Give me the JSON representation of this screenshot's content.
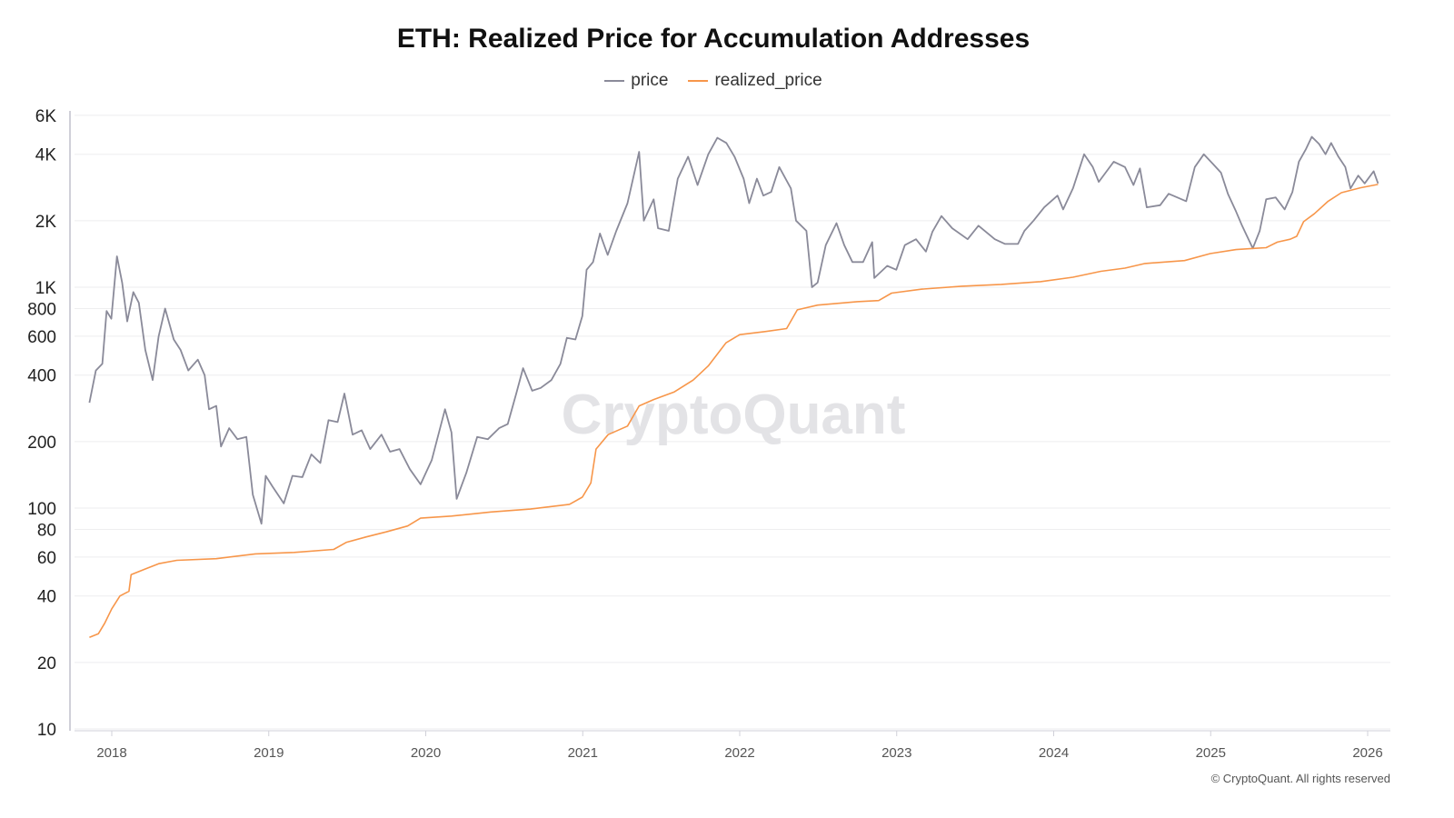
{
  "chart_data": {
    "type": "line",
    "title": "ETH: Realized Price for Accumulation Addresses",
    "y_scale": "log",
    "ylim": [
      10,
      6000
    ],
    "xlim": [
      "2017-10-20",
      "2026-03-15"
    ],
    "grid": true,
    "legend_position": "top-center",
    "y_ticks": [
      {
        "v": 10,
        "label": "10"
      },
      {
        "v": 20,
        "label": "20"
      },
      {
        "v": 40,
        "label": "40"
      },
      {
        "v": 60,
        "label": "60"
      },
      {
        "v": 80,
        "label": "80"
      },
      {
        "v": 100,
        "label": "100"
      },
      {
        "v": 200,
        "label": "200"
      },
      {
        "v": 400,
        "label": "400"
      },
      {
        "v": 600,
        "label": "600"
      },
      {
        "v": 800,
        "label": "800"
      },
      {
        "v": 1000,
        "label": "1K"
      },
      {
        "v": 2000,
        "label": "2K"
      },
      {
        "v": 4000,
        "label": "4K"
      },
      {
        "v": 6000,
        "label": "6K"
      }
    ],
    "x_ticks": [
      "2018",
      "2019",
      "2020",
      "2021",
      "2022",
      "2023",
      "2024",
      "2025",
      "2026"
    ],
    "series": [
      {
        "name": "price",
        "color": "#8a8a99",
        "points": [
          [
            "2017-11-10",
            300
          ],
          [
            "2017-11-25",
            420
          ],
          [
            "2017-12-10",
            450
          ],
          [
            "2017-12-20",
            780
          ],
          [
            "2017-12-31",
            720
          ],
          [
            "2018-01-13",
            1380
          ],
          [
            "2018-01-25",
            1050
          ],
          [
            "2018-02-06",
            700
          ],
          [
            "2018-02-20",
            950
          ],
          [
            "2018-03-05",
            850
          ],
          [
            "2018-03-20",
            520
          ],
          [
            "2018-04-06",
            380
          ],
          [
            "2018-04-20",
            600
          ],
          [
            "2018-05-05",
            800
          ],
          [
            "2018-05-25",
            580
          ],
          [
            "2018-06-10",
            520
          ],
          [
            "2018-06-28",
            420
          ],
          [
            "2018-07-20",
            470
          ],
          [
            "2018-08-05",
            400
          ],
          [
            "2018-08-15",
            280
          ],
          [
            "2018-09-01",
            290
          ],
          [
            "2018-09-12",
            190
          ],
          [
            "2018-10-01",
            230
          ],
          [
            "2018-10-20",
            205
          ],
          [
            "2018-11-10",
            210
          ],
          [
            "2018-11-25",
            115
          ],
          [
            "2018-12-15",
            85
          ],
          [
            "2018-12-25",
            140
          ],
          [
            "2019-01-10",
            125
          ],
          [
            "2019-02-05",
            105
          ],
          [
            "2019-02-25",
            140
          ],
          [
            "2019-03-20",
            138
          ],
          [
            "2019-04-10",
            175
          ],
          [
            "2019-05-01",
            160
          ],
          [
            "2019-05-20",
            250
          ],
          [
            "2019-06-10",
            245
          ],
          [
            "2019-06-26",
            330
          ],
          [
            "2019-07-15",
            215
          ],
          [
            "2019-08-05",
            225
          ],
          [
            "2019-08-25",
            185
          ],
          [
            "2019-09-20",
            215
          ],
          [
            "2019-10-10",
            180
          ],
          [
            "2019-11-01",
            185
          ],
          [
            "2019-11-25",
            150
          ],
          [
            "2019-12-20",
            128
          ],
          [
            "2020-01-15",
            165
          ],
          [
            "2020-02-15",
            280
          ],
          [
            "2020-03-01",
            220
          ],
          [
            "2020-03-13",
            110
          ],
          [
            "2020-04-05",
            145
          ],
          [
            "2020-04-30",
            210
          ],
          [
            "2020-05-25",
            205
          ],
          [
            "2020-06-20",
            230
          ],
          [
            "2020-07-10",
            240
          ],
          [
            "2020-07-30",
            330
          ],
          [
            "2020-08-15",
            430
          ],
          [
            "2020-09-05",
            340
          ],
          [
            "2020-09-25",
            350
          ],
          [
            "2020-10-20",
            380
          ],
          [
            "2020-11-10",
            450
          ],
          [
            "2020-11-25",
            590
          ],
          [
            "2020-12-15",
            580
          ],
          [
            "2020-12-31",
            740
          ],
          [
            "2021-01-10",
            1200
          ],
          [
            "2021-01-25",
            1300
          ],
          [
            "2021-02-10",
            1750
          ],
          [
            "2021-02-28",
            1400
          ],
          [
            "2021-03-20",
            1800
          ],
          [
            "2021-04-15",
            2400
          ],
          [
            "2021-05-12",
            4100
          ],
          [
            "2021-05-23",
            2000
          ],
          [
            "2021-06-15",
            2500
          ],
          [
            "2021-06-25",
            1850
          ],
          [
            "2021-07-20",
            1800
          ],
          [
            "2021-08-10",
            3100
          ],
          [
            "2021-09-03",
            3900
          ],
          [
            "2021-09-25",
            2900
          ],
          [
            "2021-10-20",
            4000
          ],
          [
            "2021-11-10",
            4750
          ],
          [
            "2021-12-01",
            4500
          ],
          [
            "2021-12-20",
            3900
          ],
          [
            "2022-01-10",
            3100
          ],
          [
            "2022-01-23",
            2400
          ],
          [
            "2022-02-10",
            3100
          ],
          [
            "2022-02-25",
            2600
          ],
          [
            "2022-03-15",
            2700
          ],
          [
            "2022-04-03",
            3500
          ],
          [
            "2022-04-30",
            2800
          ],
          [
            "2022-05-12",
            2000
          ],
          [
            "2022-06-05",
            1800
          ],
          [
            "2022-06-18",
            1000
          ],
          [
            "2022-07-01",
            1050
          ],
          [
            "2022-07-20",
            1550
          ],
          [
            "2022-08-14",
            1950
          ],
          [
            "2022-09-01",
            1550
          ],
          [
            "2022-09-20",
            1300
          ],
          [
            "2022-10-15",
            1300
          ],
          [
            "2022-11-05",
            1600
          ],
          [
            "2022-11-10",
            1100
          ],
          [
            "2022-12-10",
            1250
          ],
          [
            "2022-12-31",
            1200
          ],
          [
            "2023-01-20",
            1550
          ],
          [
            "2023-02-15",
            1650
          ],
          [
            "2023-03-10",
            1450
          ],
          [
            "2023-03-25",
            1780
          ],
          [
            "2023-04-15",
            2100
          ],
          [
            "2023-05-10",
            1850
          ],
          [
            "2023-06-15",
            1650
          ],
          [
            "2023-07-10",
            1900
          ],
          [
            "2023-08-17",
            1650
          ],
          [
            "2023-09-10",
            1570
          ],
          [
            "2023-10-10",
            1570
          ],
          [
            "2023-10-25",
            1800
          ],
          [
            "2023-11-15",
            2000
          ],
          [
            "2023-12-10",
            2300
          ],
          [
            "2024-01-10",
            2600
          ],
          [
            "2024-01-23",
            2250
          ],
          [
            "2024-02-15",
            2800
          ],
          [
            "2024-03-12",
            4000
          ],
          [
            "2024-04-01",
            3500
          ],
          [
            "2024-04-15",
            3000
          ],
          [
            "2024-05-20",
            3700
          ],
          [
            "2024-06-15",
            3500
          ],
          [
            "2024-07-05",
            2900
          ],
          [
            "2024-07-20",
            3450
          ],
          [
            "2024-08-05",
            2300
          ],
          [
            "2024-09-05",
            2350
          ],
          [
            "2024-09-25",
            2650
          ],
          [
            "2024-10-15",
            2550
          ],
          [
            "2024-11-05",
            2450
          ],
          [
            "2024-11-25",
            3500
          ],
          [
            "2024-12-16",
            4000
          ],
          [
            "2025-01-07",
            3600
          ],
          [
            "2025-01-25",
            3300
          ],
          [
            "2025-02-10",
            2650
          ],
          [
            "2025-03-01",
            2200
          ],
          [
            "2025-03-15",
            1900
          ],
          [
            "2025-04-09",
            1500
          ],
          [
            "2025-04-25",
            1800
          ],
          [
            "2025-05-10",
            2500
          ],
          [
            "2025-06-01",
            2550
          ],
          [
            "2025-06-22",
            2250
          ],
          [
            "2025-07-10",
            2700
          ],
          [
            "2025-07-25",
            3700
          ],
          [
            "2025-08-10",
            4200
          ],
          [
            "2025-08-24",
            4800
          ],
          [
            "2025-09-10",
            4450
          ],
          [
            "2025-09-25",
            4000
          ],
          [
            "2025-10-08",
            4500
          ],
          [
            "2025-10-25",
            3900
          ],
          [
            "2025-11-10",
            3500
          ],
          [
            "2025-11-22",
            2800
          ],
          [
            "2025-12-10",
            3200
          ],
          [
            "2025-12-25",
            2950
          ],
          [
            "2026-01-15",
            3350
          ],
          [
            "2026-01-25",
            2950
          ]
        ]
      },
      {
        "name": "realized_price",
        "color": "#f7964a",
        "points": [
          [
            "2017-11-10",
            26
          ],
          [
            "2017-12-01",
            27
          ],
          [
            "2017-12-15",
            30
          ],
          [
            "2018-01-01",
            35
          ],
          [
            "2018-01-20",
            40
          ],
          [
            "2018-02-10",
            42
          ],
          [
            "2018-02-15",
            50
          ],
          [
            "2018-03-20",
            53
          ],
          [
            "2018-04-20",
            56
          ],
          [
            "2018-06-01",
            58
          ],
          [
            "2018-09-01",
            59
          ],
          [
            "2018-12-01",
            62
          ],
          [
            "2019-03-01",
            63
          ],
          [
            "2019-06-01",
            65
          ],
          [
            "2019-07-01",
            70
          ],
          [
            "2019-08-15",
            74
          ],
          [
            "2019-10-01",
            78
          ],
          [
            "2019-11-20",
            83
          ],
          [
            "2019-12-20",
            90
          ],
          [
            "2020-03-01",
            92
          ],
          [
            "2020-06-01",
            96
          ],
          [
            "2020-09-01",
            99
          ],
          [
            "2020-12-01",
            104
          ],
          [
            "2020-12-31",
            112
          ],
          [
            "2021-01-20",
            130
          ],
          [
            "2021-02-01",
            185
          ],
          [
            "2021-03-01",
            215
          ],
          [
            "2021-04-15",
            235
          ],
          [
            "2021-05-12",
            290
          ],
          [
            "2021-06-15",
            310
          ],
          [
            "2021-08-01",
            335
          ],
          [
            "2021-09-15",
            380
          ],
          [
            "2021-10-20",
            440
          ],
          [
            "2021-11-30",
            560
          ],
          [
            "2022-01-01",
            610
          ],
          [
            "2022-03-01",
            630
          ],
          [
            "2022-04-20",
            650
          ],
          [
            "2022-05-15",
            790
          ],
          [
            "2022-07-01",
            830
          ],
          [
            "2022-10-01",
            860
          ],
          [
            "2022-11-20",
            870
          ],
          [
            "2022-12-20",
            940
          ],
          [
            "2023-03-01",
            980
          ],
          [
            "2023-06-01",
            1010
          ],
          [
            "2023-09-01",
            1030
          ],
          [
            "2023-12-01",
            1060
          ],
          [
            "2024-02-15",
            1110
          ],
          [
            "2024-04-20",
            1180
          ],
          [
            "2024-06-15",
            1220
          ],
          [
            "2024-08-01",
            1280
          ],
          [
            "2024-11-01",
            1320
          ],
          [
            "2024-12-31",
            1420
          ],
          [
            "2025-03-01",
            1480
          ],
          [
            "2025-04-15",
            1500
          ],
          [
            "2025-05-10",
            1510
          ],
          [
            "2025-06-05",
            1600
          ],
          [
            "2025-07-05",
            1650
          ],
          [
            "2025-07-20",
            1700
          ],
          [
            "2025-08-05",
            1980
          ],
          [
            "2025-08-30",
            2150
          ],
          [
            "2025-10-01",
            2450
          ],
          [
            "2025-11-01",
            2680
          ],
          [
            "2025-12-15",
            2820
          ],
          [
            "2026-01-25",
            2920
          ]
        ]
      }
    ]
  },
  "legend": {
    "price": "price",
    "realized_price": "realized_price"
  },
  "watermark": "CryptoQuant",
  "footer": "© CryptoQuant. All rights reserved"
}
